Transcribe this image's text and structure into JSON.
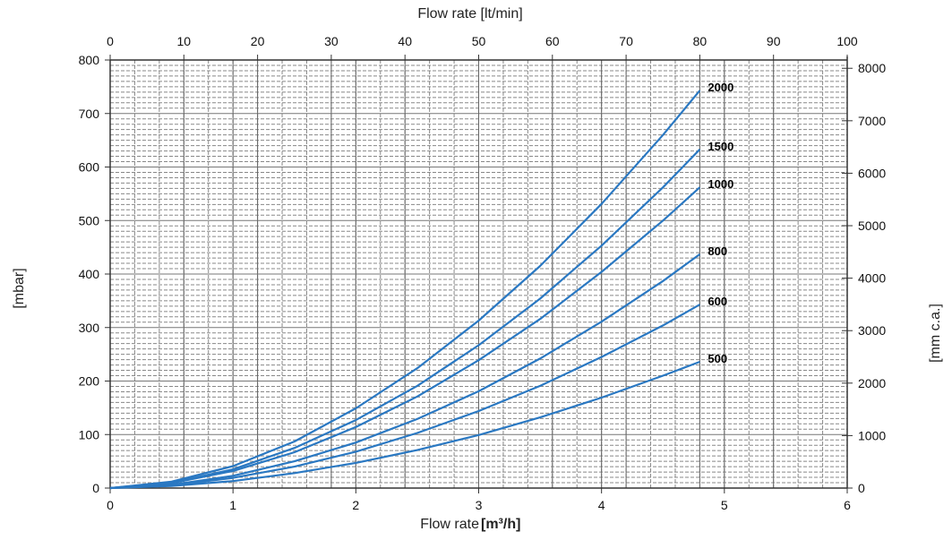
{
  "chart_data": {
    "type": "line",
    "title": "",
    "xlabel": "Flow rate",
    "xlabel_unit": "[m³/h]",
    "x2label": "Flow rate [lt/min]",
    "ylabel": "[mbar]",
    "y2label": "[mm c.a.]",
    "xlim": [
      0,
      6
    ],
    "x2lim": [
      0,
      100
    ],
    "ylim": [
      0,
      800
    ],
    "y2lim": [
      0,
      8000
    ],
    "xticks": [
      "0",
      "1",
      "2",
      "3",
      "4",
      "5",
      "6"
    ],
    "x2ticks": [
      "0",
      "10",
      "20",
      "30",
      "40",
      "50",
      "60",
      "70",
      "80",
      "90",
      "100"
    ],
    "yticks": [
      "0",
      "100",
      "200",
      "300",
      "400",
      "500",
      "600",
      "700",
      "800"
    ],
    "y2ticks": [
      "0",
      "1000",
      "2000",
      "3000",
      "4000",
      "5000",
      "6000",
      "7000",
      "8000"
    ],
    "grid": true,
    "line_color": "#2a78c2",
    "x": [
      0,
      0.5,
      1,
      1.5,
      2,
      2.5,
      3,
      3.5,
      4,
      4.5,
      4.8
    ],
    "series": [
      {
        "name": "2000",
        "values": [
          0,
          12,
          41,
          87,
          149,
          224,
          313,
          415,
          531,
          660,
          743
        ]
      },
      {
        "name": "1500",
        "values": [
          0,
          10,
          35,
          75,
          127,
          191,
          267,
          354,
          453,
          562,
          633
        ]
      },
      {
        "name": "1000",
        "values": [
          0,
          9,
          32,
          67,
          114,
          171,
          239,
          316,
          404,
          500,
          562
        ]
      },
      {
        "name": "800",
        "values": [
          0,
          6,
          23,
          50,
          85,
          129,
          181,
          242,
          311,
          387,
          437
        ]
      },
      {
        "name": "600",
        "values": [
          0,
          5,
          19,
          40,
          68,
          103,
          144,
          191,
          245,
          304,
          343
        ]
      },
      {
        "name": "500",
        "values": [
          0,
          4,
          13,
          28,
          47,
          71,
          99,
          132,
          169,
          210,
          236
        ]
      }
    ]
  }
}
